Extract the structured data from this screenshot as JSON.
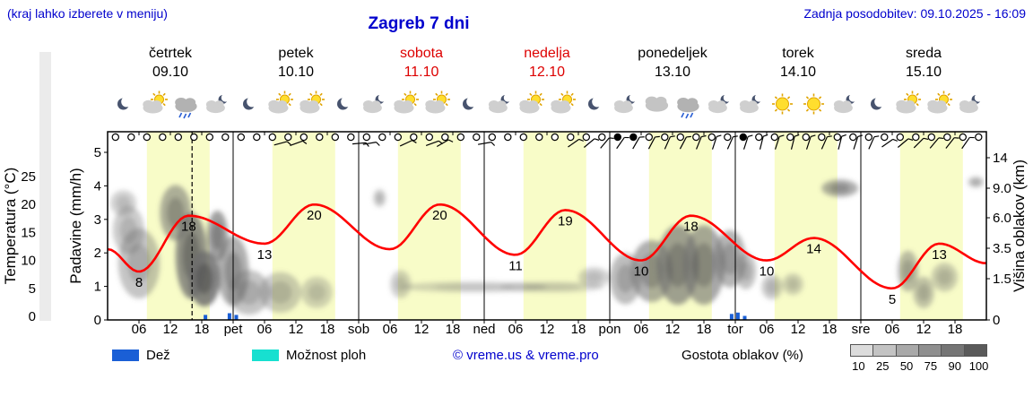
{
  "header": {
    "hint": "(kraj lahko izberete v meniju)",
    "title": "Zagreb 7 dni",
    "updated": "Zadnja posodobitev: 09.10.2025 - 16:09"
  },
  "days": [
    {
      "name": "četrtek",
      "date": "09.10",
      "weekend": false
    },
    {
      "name": "petek",
      "date": "10.10",
      "weekend": false
    },
    {
      "name": "sobota",
      "date": "11.10",
      "weekend": true
    },
    {
      "name": "nedelja",
      "date": "12.10",
      "weekend": true
    },
    {
      "name": "ponedeljek",
      "date": "13.10",
      "weekend": false
    },
    {
      "name": "torek",
      "date": "14.10",
      "weekend": false
    },
    {
      "name": "sreda",
      "date": "15.10",
      "weekend": false
    }
  ],
  "axes": {
    "temp_title": "Temperatura (°C)",
    "precip_title": "Padavine (mm/h)",
    "cloud_title": "Višina oblakov (km)",
    "temp_ticks": [
      25,
      20,
      15,
      10,
      5,
      0
    ],
    "precip_ticks": [
      5,
      4,
      3,
      2,
      1,
      0
    ],
    "cloud_ticks": [
      {
        "label": "14",
        "km": 14
      },
      {
        "label": "9.0",
        "km": 9
      },
      {
        "label": "6.0",
        "km": 6
      },
      {
        "label": "3.5",
        "km": 3.5
      },
      {
        "label": "1.5",
        "km": 1.5
      },
      {
        "label": "0",
        "km": 0
      }
    ],
    "x_ticks": [
      {
        "t": 6,
        "label": "06"
      },
      {
        "t": 12,
        "label": "12"
      },
      {
        "t": 18,
        "label": "18"
      },
      {
        "t": 24,
        "label": "pet"
      },
      {
        "t": 30,
        "label": "06"
      },
      {
        "t": 36,
        "label": "12"
      },
      {
        "t": 42,
        "label": "18"
      },
      {
        "t": 48,
        "label": "sob"
      },
      {
        "t": 54,
        "label": "06"
      },
      {
        "t": 60,
        "label": "12"
      },
      {
        "t": 66,
        "label": "18"
      },
      {
        "t": 72,
        "label": "ned"
      },
      {
        "t": 78,
        "label": "06"
      },
      {
        "t": 84,
        "label": "12"
      },
      {
        "t": 90,
        "label": "18"
      },
      {
        "t": 96,
        "label": "pon"
      },
      {
        "t": 102,
        "label": "06"
      },
      {
        "t": 108,
        "label": "12"
      },
      {
        "t": 114,
        "label": "18"
      },
      {
        "t": 120,
        "label": "tor"
      },
      {
        "t": 126,
        "label": "06"
      },
      {
        "t": 132,
        "label": "12"
      },
      {
        "t": 138,
        "label": "18"
      },
      {
        "t": 144,
        "label": "sre"
      },
      {
        "t": 150,
        "label": "06"
      },
      {
        "t": 156,
        "label": "12"
      },
      {
        "t": 162,
        "label": "18"
      }
    ]
  },
  "legend": {
    "rain_label": "Dež",
    "showers_label": "Možnost ploh",
    "copyright": "© vreme.us & vreme.pro",
    "cloud_density_label": "Gostota oblakov (%)",
    "scale_values": [
      "10",
      "25",
      "50",
      "75",
      "90",
      "100"
    ],
    "scale_colors": [
      "#dcdcdc",
      "#c3c3c3",
      "#a9a9a9",
      "#8f8f8f",
      "#757575",
      "#5a5a5a"
    ]
  },
  "colors": {
    "accent_blue": "#0000cd",
    "temp_red": "#ff0000",
    "weekend_red": "#dd0000",
    "rain_blue": "#1a5fd6",
    "showers_cyan": "#17e0d0",
    "day_band": "#f8fcc8"
  },
  "chart_data": {
    "type": "line",
    "title": "Zagreb 7 dni",
    "x_axis": "hours from 09.10 00:00 to 15.10 24:00 (7 days)",
    "now_hour": 16.15,
    "daylight_hours": [
      7.5,
      19.5
    ],
    "temp_axis_range": [
      0,
      25
    ],
    "precip_axis_range": [
      0,
      5
    ],
    "cloud_axis_ticks_km": [
      0,
      1.5,
      3.5,
      6,
      9,
      14
    ],
    "temperature_keypoints": [
      [
        0,
        12
      ],
      [
        6,
        8
      ],
      [
        15.5,
        18
      ],
      [
        30,
        13
      ],
      [
        39.5,
        20
      ],
      [
        54,
        12
      ],
      [
        63.5,
        20
      ],
      [
        78,
        11
      ],
      [
        87.5,
        19
      ],
      [
        102,
        10
      ],
      [
        111.5,
        18
      ],
      [
        126,
        10
      ],
      [
        135,
        14
      ],
      [
        150,
        5
      ],
      [
        159,
        13
      ],
      [
        168,
        9.5
      ]
    ],
    "temperature_labels": [
      [
        6,
        8
      ],
      [
        15.5,
        18
      ],
      [
        30,
        13
      ],
      [
        39.5,
        20
      ],
      [
        63.5,
        20
      ],
      [
        78,
        11
      ],
      [
        87.5,
        19
      ],
      [
        102,
        10
      ],
      [
        111.5,
        18
      ],
      [
        126,
        10
      ],
      [
        135,
        14
      ],
      [
        150,
        5
      ],
      [
        159,
        13
      ]
    ],
    "rain_mm": [
      [
        18.7,
        0.15
      ],
      [
        23.3,
        0.2
      ],
      [
        24.6,
        0.15
      ],
      [
        119.3,
        0.18
      ],
      [
        120.5,
        0.22
      ],
      [
        121.8,
        0.12
      ]
    ],
    "clouds": [
      [
        3,
        7.5,
        2.5,
        1.3,
        0.3
      ],
      [
        4,
        5,
        3,
        2,
        0.35
      ],
      [
        6,
        2.5,
        4,
        2,
        0.4
      ],
      [
        13,
        6.5,
        3,
        2.6,
        0.55
      ],
      [
        16,
        3,
        3,
        2.6,
        0.75
      ],
      [
        18.5,
        1.5,
        3,
        1.3,
        0.85
      ],
      [
        21,
        4.5,
        2,
        2,
        0.65
      ],
      [
        24,
        2,
        3,
        1.8,
        0.55
      ],
      [
        27,
        1,
        4,
        0.9,
        0.4
      ],
      [
        33,
        1,
        4,
        0.8,
        0.35
      ],
      [
        40,
        1,
        3,
        0.6,
        0.3
      ],
      [
        52,
        8,
        1.2,
        0.9,
        0.35
      ],
      [
        56,
        1.3,
        2,
        0.6,
        0.3
      ],
      [
        70,
        1.2,
        14,
        0.2,
        0.28
      ],
      [
        85,
        1.2,
        10,
        0.2,
        0.25
      ],
      [
        93,
        1.6,
        3,
        0.5,
        0.3
      ],
      [
        99,
        1.5,
        3,
        1.2,
        0.45
      ],
      [
        104,
        2,
        4,
        1.6,
        0.55
      ],
      [
        109,
        2.4,
        4,
        2.2,
        0.65
      ],
      [
        114,
        2.4,
        4,
        2.2,
        0.6
      ],
      [
        119,
        2.8,
        3,
        1.8,
        0.5
      ],
      [
        122,
        2,
        2,
        1,
        0.4
      ],
      [
        127,
        1.2,
        2,
        0.5,
        0.35
      ],
      [
        131,
        1.3,
        2,
        0.45,
        0.3
      ],
      [
        140,
        9,
        3.5,
        1.1,
        0.55
      ],
      [
        153,
        2,
        2,
        1.1,
        0.45
      ],
      [
        156,
        1,
        2,
        0.6,
        0.4
      ],
      [
        160,
        1.6,
        2.5,
        0.7,
        0.35
      ],
      [
        166,
        10,
        1.5,
        0.9,
        0.4
      ]
    ],
    "wind_barbs": [
      [
        33,
        75
      ],
      [
        36,
        70
      ],
      [
        48,
        85
      ],
      [
        50,
        80
      ],
      [
        57,
        65
      ],
      [
        62,
        70
      ],
      [
        64,
        60
      ],
      [
        72,
        80
      ],
      [
        89,
        55
      ],
      [
        92,
        50
      ],
      [
        95,
        40
      ],
      [
        98,
        35
      ],
      [
        101,
        30
      ],
      [
        104,
        28
      ],
      [
        107,
        24
      ],
      [
        110,
        28
      ],
      [
        113,
        22
      ],
      [
        116,
        18
      ],
      [
        119,
        24
      ],
      [
        122,
        18
      ],
      [
        125,
        14
      ],
      [
        128,
        18
      ],
      [
        131,
        14
      ],
      [
        134,
        18
      ],
      [
        137,
        24
      ],
      [
        140,
        14
      ],
      [
        143,
        18
      ],
      [
        146,
        24
      ],
      [
        149,
        55
      ],
      [
        152,
        50
      ],
      [
        155,
        45
      ],
      [
        158,
        40
      ],
      [
        161,
        38
      ],
      [
        164,
        35
      ]
    ],
    "sky_circles": {
      "start": 1.5,
      "step": 3,
      "count": 56,
      "filled": [
        32,
        33,
        40
      ]
    },
    "icons": [
      [
        "moon",
        3
      ],
      [
        "sun-cloud",
        9
      ],
      [
        "rain-cloud",
        15
      ],
      [
        "moon-cloud",
        21
      ],
      [
        "moon",
        27
      ],
      [
        "sun-cloud",
        33
      ],
      [
        "sun-cloud",
        39
      ],
      [
        "moon",
        45
      ],
      [
        "moon-cloud",
        51
      ],
      [
        "sun-cloud",
        57
      ],
      [
        "sun-cloud",
        63
      ],
      [
        "moon",
        69
      ],
      [
        "moon-cloud",
        75
      ],
      [
        "sun-cloud",
        81
      ],
      [
        "sun-cloud",
        87
      ],
      [
        "moon",
        93
      ],
      [
        "moon-cloud",
        99
      ],
      [
        "cloud",
        105
      ],
      [
        "rain-cloud",
        111
      ],
      [
        "moon-cloud",
        117
      ],
      [
        "moon-cloud",
        123
      ],
      [
        "sun",
        129
      ],
      [
        "sun",
        135
      ],
      [
        "moon-cloud",
        141
      ],
      [
        "moon",
        147
      ],
      [
        "sun-cloud",
        153
      ],
      [
        "sun-cloud",
        159
      ],
      [
        "moon-cloud",
        165
      ]
    ]
  }
}
